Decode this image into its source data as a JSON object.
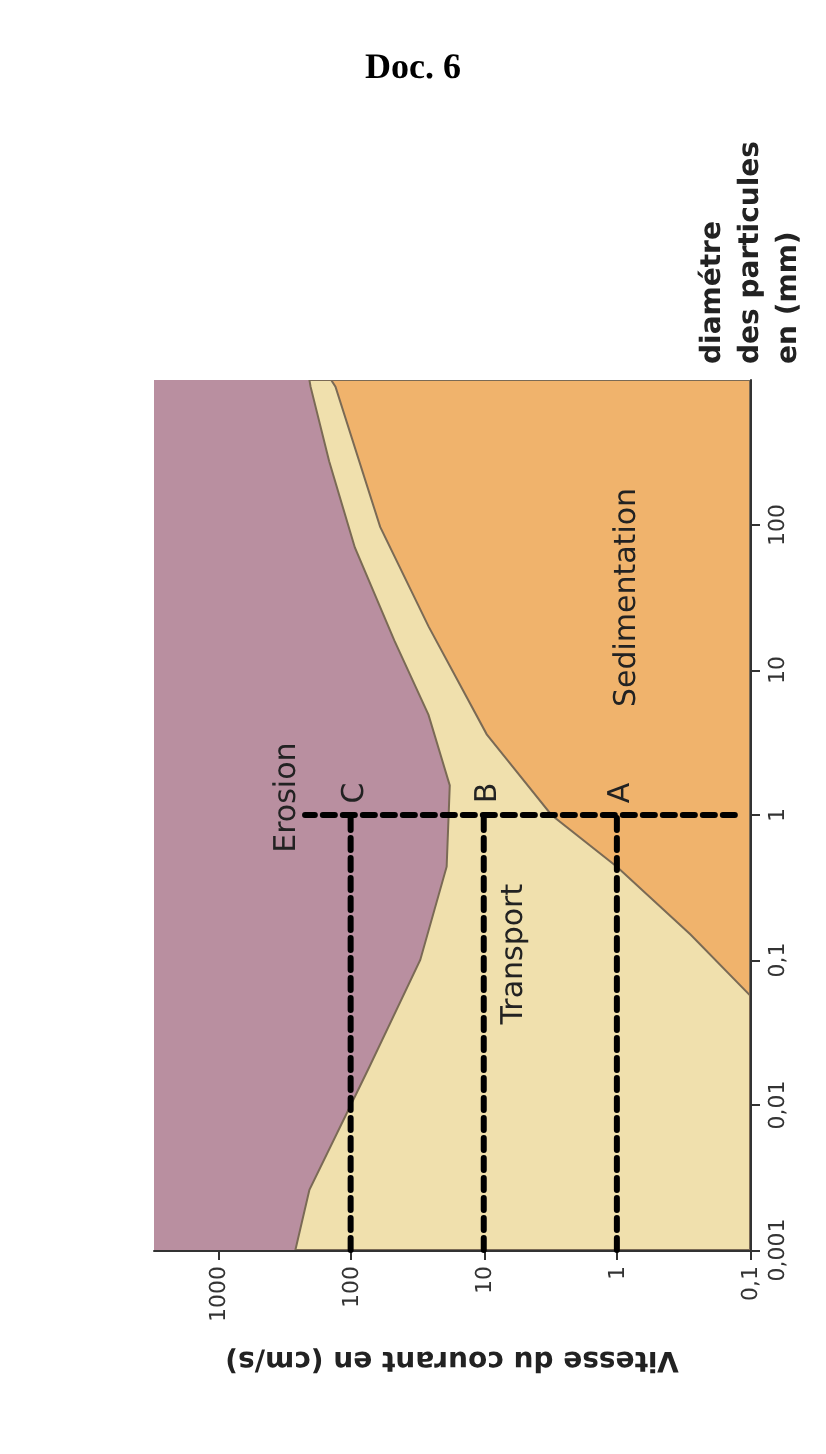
{
  "chart_data": {
    "type": "area",
    "orientation": "horizontal",
    "title": "Doc. 6",
    "xlabel": "Vitesse du courant en (cm/s)",
    "ylabel": "diamétre\ndes particules\nen (mm)",
    "log": "xy",
    "xlim": [
      3000,
      0.1
    ],
    "ylim": [
      0.001,
      1000
    ],
    "xticks": [
      {
        "value": 0.1,
        "label": "0,1"
      },
      1,
      10,
      100,
      1000
    ],
    "yticks": [
      {
        "value": 0.001,
        "label": "0,001"
      },
      {
        "value": 0.01,
        "label": "0,01"
      },
      {
        "value": 0.1,
        "label": "0,1"
      },
      1,
      10,
      100
    ],
    "series": [
      {
        "color": "#f0e0ad",
        "line_style": "solid",
        "x": [
          0.001,
          0.0026,
          0.018,
          0.1,
          0.44,
          1.6,
          4.9,
          16,
          70,
          275,
          900,
          1000
        ],
        "values": [
          260,
          204,
          73,
          30,
          19,
          18,
          26,
          47,
          93,
          145,
          200,
          204
        ]
      },
      {
        "color": "#f0b36c",
        "line_style": "solid",
        "x": [
          0.057,
          0.15,
          0.44,
          1,
          3.6,
          20,
          97,
          900,
          1000
        ],
        "values": [
          0.1,
          0.28,
          1,
          3.1,
          9.5,
          26,
          60,
          130,
          140
        ]
      },
      {
        "type": "line",
        "color": "#000000",
        "line_style": "dashed",
        "x": [
          0.001,
          1
        ],
        "values": [
          100,
          100
        ]
      },
      {
        "type": "line",
        "color": "#000000",
        "line_style": "dashed",
        "x": [
          0.001,
          1
        ],
        "values": [
          10,
          10
        ]
      },
      {
        "type": "line",
        "color": "#000000",
        "line_style": "dashed",
        "x": [
          0.001,
          1
        ],
        "values": [
          1,
          1
        ]
      },
      {
        "type": "line",
        "color": "#000000",
        "line_style": "dashed",
        "x": [
          1,
          1
        ],
        "values": [
          0.13,
          220
        ]
      }
    ],
    "annotations": [
      "Erosion",
      "Transport",
      "Sedimentation",
      {
        "text": "C",
        "x": 100,
        "y": 1
      },
      {
        "text": "B",
        "x": 10,
        "y": 1
      },
      {
        "text": "A",
        "x": 1,
        "y": 1
      }
    ],
    "marker": "none"
  }
}
